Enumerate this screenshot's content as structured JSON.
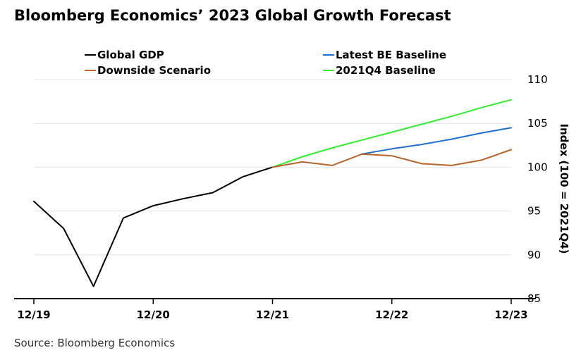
{
  "chart_data": {
    "type": "line",
    "title": "Bloomberg Economics’ 2023 Global Growth Forecast",
    "source": "Source: Bloomberg Economics",
    "ylabel": "Index (100 = 2021Q4)",
    "xlabel": "",
    "ylim": [
      85,
      110
    ],
    "yticks": [
      85,
      90,
      95,
      100,
      105,
      110
    ],
    "x_tick_labels": [
      "12/19",
      "12/20",
      "12/21",
      "12/22",
      "12/23"
    ],
    "x_tick_positions": [
      0,
      4,
      8,
      12,
      16
    ],
    "x_range": [
      0,
      16
    ],
    "legend": [
      {
        "name": "Global GDP",
        "color": "#000000"
      },
      {
        "name": "Latest BE Baseline",
        "color": "#1f6fd0"
      },
      {
        "name": "Downside Scenario",
        "color": "#b8642a"
      },
      {
        "name": "2021Q4 Baseline",
        "color": "#33ee33"
      }
    ],
    "series": [
      {
        "name": "Global GDP",
        "color": "#000000",
        "x": [
          0,
          1,
          2,
          3,
          4,
          5,
          6,
          7,
          8
        ],
        "values": [
          96.1,
          93.0,
          86.4,
          94.2,
          95.6,
          96.4,
          97.1,
          98.9,
          100.0
        ]
      },
      {
        "name": "2021Q4 Baseline",
        "color": "#33ee33",
        "x": [
          8,
          9,
          10,
          11,
          12,
          13,
          14,
          15,
          16
        ],
        "values": [
          100.0,
          101.2,
          102.2,
          103.1,
          104.0,
          104.9,
          105.8,
          106.8,
          107.7
        ]
      },
      {
        "name": "Latest BE Baseline",
        "color": "#1f6fd0",
        "x": [
          11,
          12,
          13,
          14,
          15,
          16
        ],
        "values": [
          101.5,
          102.1,
          102.6,
          103.2,
          103.9,
          104.5
        ]
      },
      {
        "name": "Downside Scenario",
        "color": "#b8642a",
        "x": [
          8,
          9,
          10,
          11,
          12,
          13,
          14,
          15,
          16
        ],
        "values": [
          100.0,
          100.6,
          100.2,
          101.5,
          101.3,
          100.4,
          100.2,
          100.8,
          102.0
        ]
      }
    ]
  }
}
